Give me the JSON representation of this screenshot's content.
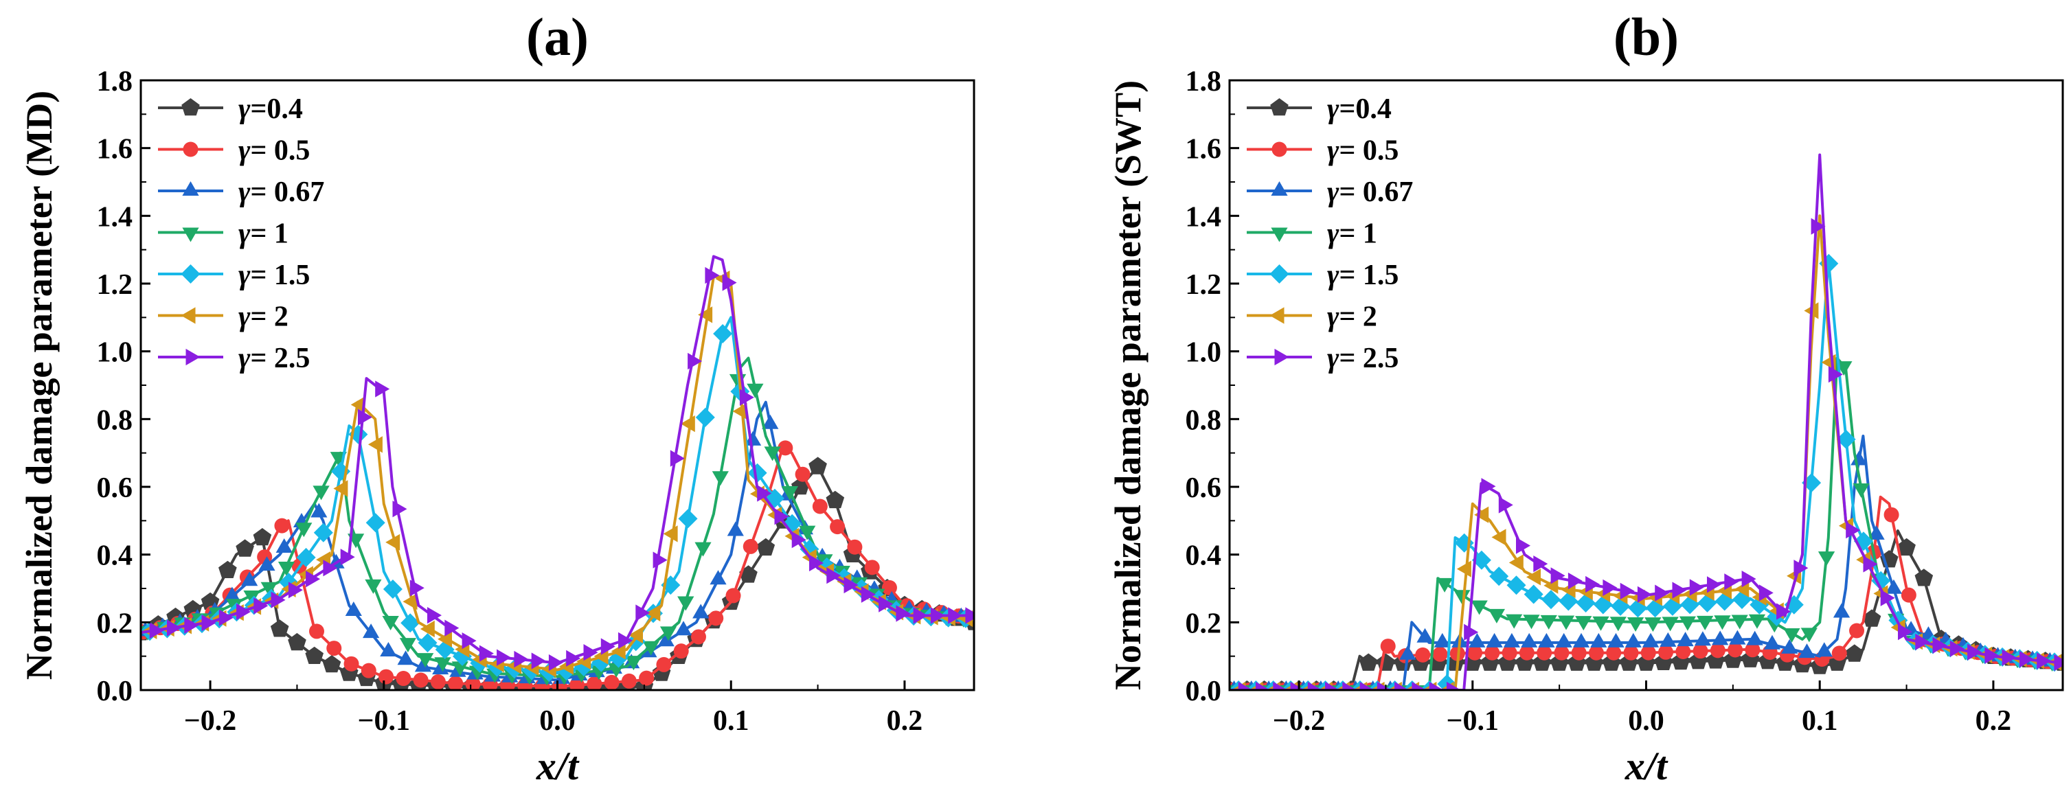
{
  "chart_data": [
    {
      "id": "a",
      "type": "line",
      "title": "(a)",
      "xlabel": "x/t",
      "ylabel": "Normalized damage parameter (MD)",
      "xlim": [
        -0.24,
        0.24
      ],
      "ylim": [
        0.0,
        1.8
      ],
      "xticks": [
        -0.2,
        -0.1,
        0.0,
        0.1,
        0.2
      ],
      "xtick_labels": [
        "−0.2",
        "−0.1",
        "0.0",
        "0.1",
        "0.2"
      ],
      "yticks": [
        0.0,
        0.2,
        0.4,
        0.6,
        0.8,
        1.0,
        1.2,
        1.4,
        1.6,
        1.8
      ],
      "ytick_labels": [
        "0.0",
        "0.2",
        "0.4",
        "0.6",
        "0.8",
        "1.0",
        "1.2",
        "1.4",
        "1.6",
        "1.8"
      ],
      "grid": false,
      "legend_position": "top-left",
      "series": [
        {
          "name": "γ=0.4",
          "color": "#404040",
          "marker": "pentagon",
          "x": [
            -0.24,
            -0.2,
            -0.185,
            -0.17,
            -0.16,
            -0.14,
            -0.12,
            -0.1,
            -0.06,
            0.0,
            0.05,
            0.06,
            0.08,
            0.1,
            0.13,
            0.14,
            0.15,
            0.16,
            0.17,
            0.2,
            0.24
          ],
          "y": [
            0.17,
            0.26,
            0.4,
            0.45,
            0.18,
            0.1,
            0.05,
            0.02,
            0.01,
            0.0,
            0.01,
            0.05,
            0.15,
            0.26,
            0.5,
            0.6,
            0.66,
            0.56,
            0.4,
            0.25,
            0.2
          ]
        },
        {
          "name": "γ= 0.5",
          "color": "#f03c3c",
          "marker": "circle",
          "x": [
            -0.24,
            -0.2,
            -0.17,
            -0.16,
            -0.155,
            -0.14,
            -0.12,
            -0.1,
            -0.06,
            0.0,
            0.05,
            0.08,
            0.1,
            0.12,
            0.13,
            0.135,
            0.15,
            0.2,
            0.24
          ],
          "y": [
            0.17,
            0.22,
            0.38,
            0.48,
            0.5,
            0.18,
            0.08,
            0.04,
            0.02,
            0.01,
            0.03,
            0.15,
            0.26,
            0.55,
            0.72,
            0.7,
            0.55,
            0.25,
            0.21
          ]
        },
        {
          "name": "γ= 0.67",
          "color": "#1f66cc",
          "marker": "triangle-up",
          "x": [
            -0.24,
            -0.2,
            -0.16,
            -0.14,
            -0.135,
            -0.12,
            -0.1,
            -0.08,
            -0.04,
            0.0,
            0.04,
            0.08,
            0.1,
            0.115,
            0.12,
            0.13,
            0.15,
            0.2,
            0.24
          ],
          "y": [
            0.17,
            0.22,
            0.4,
            0.55,
            0.5,
            0.25,
            0.12,
            0.07,
            0.04,
            0.03,
            0.07,
            0.2,
            0.4,
            0.8,
            0.85,
            0.6,
            0.4,
            0.24,
            0.21
          ]
        },
        {
          "name": "γ= 1",
          "color": "#1faa66",
          "marker": "triangle-down",
          "x": [
            -0.24,
            -0.2,
            -0.16,
            -0.14,
            -0.125,
            -0.12,
            -0.1,
            -0.08,
            -0.04,
            0.0,
            0.04,
            0.07,
            0.09,
            0.105,
            0.11,
            0.12,
            0.15,
            0.2,
            0.24
          ],
          "y": [
            0.17,
            0.22,
            0.32,
            0.55,
            0.7,
            0.5,
            0.23,
            0.1,
            0.05,
            0.04,
            0.07,
            0.2,
            0.52,
            0.95,
            0.98,
            0.75,
            0.4,
            0.23,
            0.21
          ]
        },
        {
          "name": "γ= 1.5",
          "color": "#18b8e8",
          "marker": "diamond",
          "x": [
            -0.24,
            -0.2,
            -0.16,
            -0.13,
            -0.12,
            -0.115,
            -0.105,
            -0.1,
            -0.08,
            -0.04,
            0.0,
            0.04,
            0.07,
            0.085,
            0.095,
            0.1,
            0.11,
            0.15,
            0.2,
            0.24
          ],
          "y": [
            0.17,
            0.2,
            0.28,
            0.5,
            0.78,
            0.76,
            0.5,
            0.35,
            0.15,
            0.07,
            0.05,
            0.1,
            0.35,
            0.8,
            1.05,
            1.1,
            0.68,
            0.38,
            0.22,
            0.21
          ]
        },
        {
          "name": "γ= 2",
          "color": "#d4971a",
          "marker": "triangle-left",
          "x": [
            -0.24,
            -0.2,
            -0.16,
            -0.13,
            -0.115,
            -0.105,
            -0.1,
            -0.08,
            -0.04,
            0.0,
            0.04,
            0.06,
            0.08,
            0.09,
            0.095,
            0.1,
            0.11,
            0.15,
            0.2,
            0.24
          ],
          "y": [
            0.17,
            0.2,
            0.27,
            0.4,
            0.85,
            0.8,
            0.55,
            0.2,
            0.08,
            0.06,
            0.12,
            0.25,
            0.9,
            1.22,
            1.22,
            1.2,
            0.62,
            0.37,
            0.22,
            0.21
          ]
        },
        {
          "name": "γ= 2.5",
          "color": "#8b1ee0",
          "marker": "triangle-right",
          "x": [
            -0.24,
            -0.2,
            -0.16,
            -0.12,
            -0.11,
            -0.1,
            -0.095,
            -0.08,
            -0.04,
            0.0,
            0.04,
            0.055,
            0.075,
            0.09,
            0.095,
            0.1,
            0.115,
            0.15,
            0.2,
            0.24
          ],
          "y": [
            0.17,
            0.2,
            0.27,
            0.4,
            0.92,
            0.88,
            0.6,
            0.25,
            0.1,
            0.08,
            0.15,
            0.3,
            0.9,
            1.28,
            1.27,
            1.15,
            0.6,
            0.36,
            0.22,
            0.22
          ]
        }
      ]
    },
    {
      "id": "b",
      "type": "line",
      "title": "(b)",
      "xlabel": "x/t",
      "ylabel": "Normalized damage parameter (SWT)",
      "xlim": [
        -0.24,
        0.24
      ],
      "ylim": [
        0.0,
        1.8
      ],
      "xticks": [
        -0.2,
        -0.1,
        0.0,
        0.1,
        0.2
      ],
      "xtick_labels": [
        "−0.2",
        "−0.1",
        "0.0",
        "0.1",
        "0.2"
      ],
      "yticks": [
        0.0,
        0.2,
        0.4,
        0.6,
        0.8,
        1.0,
        1.2,
        1.4,
        1.6,
        1.8
      ],
      "ytick_labels": [
        "0.0",
        "0.2",
        "0.4",
        "0.6",
        "0.8",
        "1.0",
        "1.2",
        "1.4",
        "1.6",
        "1.8"
      ],
      "grid": false,
      "legend_position": "top-left",
      "series": [
        {
          "name": "γ=0.4",
          "color": "#404040",
          "marker": "pentagon",
          "x": [
            -0.24,
            -0.17,
            -0.165,
            -0.16,
            -0.1,
            0.0,
            0.06,
            0.1,
            0.11,
            0.125,
            0.135,
            0.145,
            0.15,
            0.16,
            0.17,
            0.2,
            0.24
          ],
          "y": [
            0.0,
            0.0,
            0.1,
            0.08,
            0.08,
            0.08,
            0.09,
            0.07,
            0.08,
            0.12,
            0.3,
            0.47,
            0.42,
            0.33,
            0.15,
            0.1,
            0.08
          ]
        },
        {
          "name": "γ= 0.5",
          "color": "#f03c3c",
          "marker": "circle",
          "x": [
            -0.24,
            -0.155,
            -0.15,
            -0.145,
            -0.1,
            0.0,
            0.06,
            0.1,
            0.11,
            0.125,
            0.13,
            0.135,
            0.14,
            0.15,
            0.16,
            0.2,
            0.24
          ],
          "y": [
            0.0,
            0.0,
            0.14,
            0.1,
            0.11,
            0.11,
            0.12,
            0.09,
            0.1,
            0.2,
            0.35,
            0.57,
            0.55,
            0.3,
            0.15,
            0.1,
            0.08
          ]
        },
        {
          "name": "γ= 0.67",
          "color": "#1f66cc",
          "marker": "triangle-up",
          "x": [
            -0.24,
            -0.14,
            -0.135,
            -0.125,
            -0.1,
            0.0,
            0.06,
            0.1,
            0.11,
            0.115,
            0.12,
            0.125,
            0.13,
            0.15,
            0.2,
            0.24
          ],
          "y": [
            0.0,
            0.0,
            0.2,
            0.14,
            0.14,
            0.14,
            0.15,
            0.1,
            0.15,
            0.3,
            0.6,
            0.75,
            0.5,
            0.18,
            0.1,
            0.08
          ]
        },
        {
          "name": "γ= 1",
          "color": "#1faa66",
          "marker": "triangle-down",
          "x": [
            -0.24,
            -0.125,
            -0.12,
            -0.1,
            -0.08,
            0.0,
            0.07,
            0.09,
            0.1,
            0.105,
            0.11,
            0.115,
            0.12,
            0.135,
            0.15,
            0.2,
            0.24
          ],
          "y": [
            0.0,
            0.0,
            0.33,
            0.26,
            0.21,
            0.2,
            0.21,
            0.15,
            0.2,
            0.45,
            0.98,
            0.95,
            0.7,
            0.3,
            0.15,
            0.1,
            0.08
          ]
        },
        {
          "name": "γ= 1.5",
          "color": "#18b8e8",
          "marker": "diamond",
          "x": [
            -0.24,
            -0.115,
            -0.11,
            -0.1,
            -0.09,
            -0.06,
            0.0,
            0.06,
            0.08,
            0.09,
            0.1,
            0.105,
            0.11,
            0.12,
            0.15,
            0.2,
            0.24
          ],
          "y": [
            0.0,
            0.0,
            0.45,
            0.42,
            0.35,
            0.27,
            0.24,
            0.27,
            0.2,
            0.3,
            0.9,
            1.27,
            1.0,
            0.5,
            0.15,
            0.1,
            0.08
          ]
        },
        {
          "name": "γ= 2",
          "color": "#d4971a",
          "marker": "triangle-left",
          "x": [
            -0.24,
            -0.11,
            -0.1,
            -0.09,
            -0.07,
            -0.05,
            0.0,
            0.06,
            0.08,
            0.09,
            0.095,
            0.1,
            0.105,
            0.115,
            0.15,
            0.2,
            0.24
          ],
          "y": [
            0.0,
            0.0,
            0.55,
            0.5,
            0.35,
            0.3,
            0.27,
            0.3,
            0.22,
            0.4,
            1.0,
            1.4,
            1.05,
            0.5,
            0.15,
            0.1,
            0.08
          ]
        },
        {
          "name": "γ= 2.5",
          "color": "#8b1ee0",
          "marker": "triangle-right",
          "x": [
            -0.24,
            -0.105,
            -0.095,
            -0.085,
            -0.07,
            -0.05,
            0.0,
            0.06,
            0.08,
            0.09,
            0.095,
            0.1,
            0.105,
            0.115,
            0.15,
            0.2,
            0.24
          ],
          "y": [
            0.0,
            0.0,
            0.61,
            0.58,
            0.4,
            0.33,
            0.28,
            0.33,
            0.22,
            0.4,
            1.1,
            1.58,
            1.1,
            0.5,
            0.15,
            0.1,
            0.08
          ]
        }
      ]
    }
  ]
}
